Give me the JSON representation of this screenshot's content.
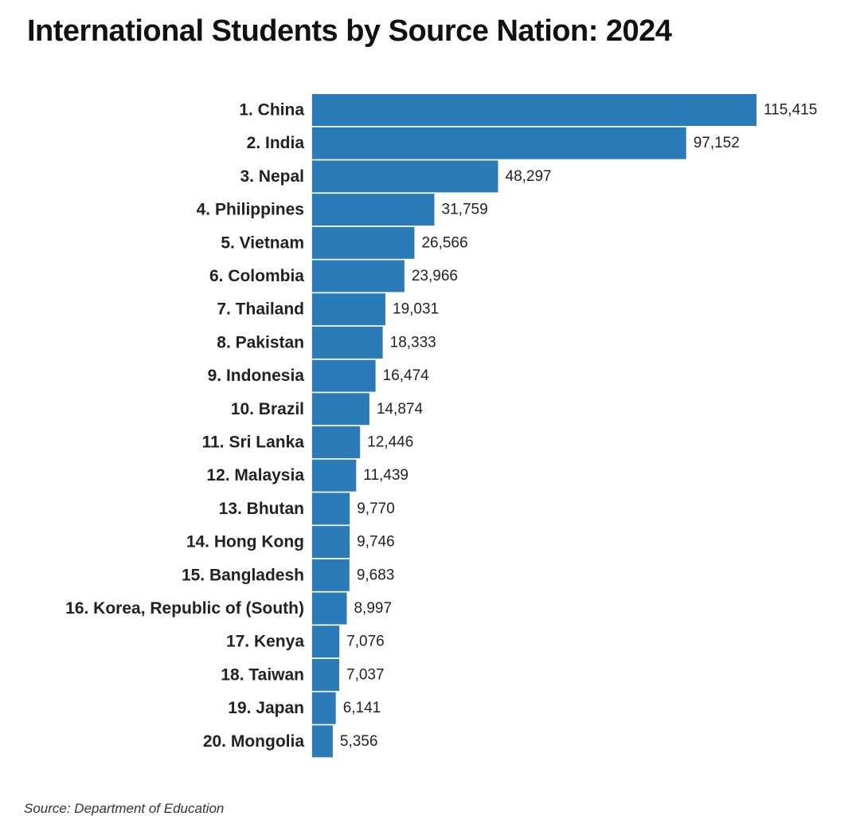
{
  "title": "International Students by Source Nation: 2024",
  "source": "Source: Department of Education",
  "colors": {
    "bar": "#2b7bb9",
    "text": "#222222"
  },
  "chart_data": {
    "type": "bar",
    "orientation": "horizontal",
    "title": "International Students by Source Nation: 2024",
    "xlabel": "",
    "ylabel": "",
    "grid": false,
    "xlim": [
      0,
      115415
    ],
    "categories": [
      "1. China",
      "2. India",
      "3. Nepal",
      "4. Philippines",
      "5. Vietnam",
      "6. Colombia",
      "7. Thailand",
      "8. Pakistan",
      "9. Indonesia",
      "10. Brazil",
      "11. Sri Lanka",
      "12. Malaysia",
      "13. Bhutan",
      "14. Hong Kong",
      "15. Bangladesh",
      "16. Korea, Republic of (South)",
      "17. Kenya",
      "18. Taiwan",
      "19. Japan",
      "20. Mongolia"
    ],
    "values": [
      115415,
      97152,
      48297,
      31759,
      26566,
      23966,
      19031,
      18333,
      16474,
      14874,
      12446,
      11439,
      9770,
      9746,
      9683,
      8997,
      7076,
      7037,
      6141,
      5356
    ],
    "data_labels": [
      "115,415",
      "97,152",
      "48,297",
      "31,759",
      "26,566",
      "23,966",
      "19,031",
      "18,333",
      "16,474",
      "14,874",
      "12,446",
      "11,439",
      "9,770",
      "9,746",
      "9,683",
      "8,997",
      "7,076",
      "7,037",
      "6,141",
      "5,356"
    ]
  }
}
